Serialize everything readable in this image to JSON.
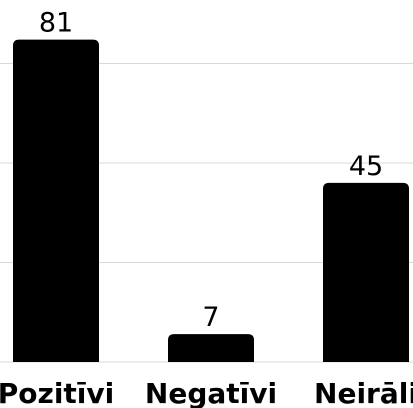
{
  "chart_data": {
    "type": "bar",
    "categories": [
      "Pozitīvi",
      "Negatīvi",
      "Neirāli"
    ],
    "values": [
      81,
      7,
      45
    ],
    "value_labels": [
      "81",
      "7",
      "45"
    ],
    "bar_color": "#000000",
    "grid_color": "#d9d9d9",
    "ylim": [
      0,
      80
    ],
    "grid": true,
    "gridline_values": [
      25,
      50,
      75
    ],
    "title": "",
    "xlabel": "",
    "ylabel": ""
  }
}
